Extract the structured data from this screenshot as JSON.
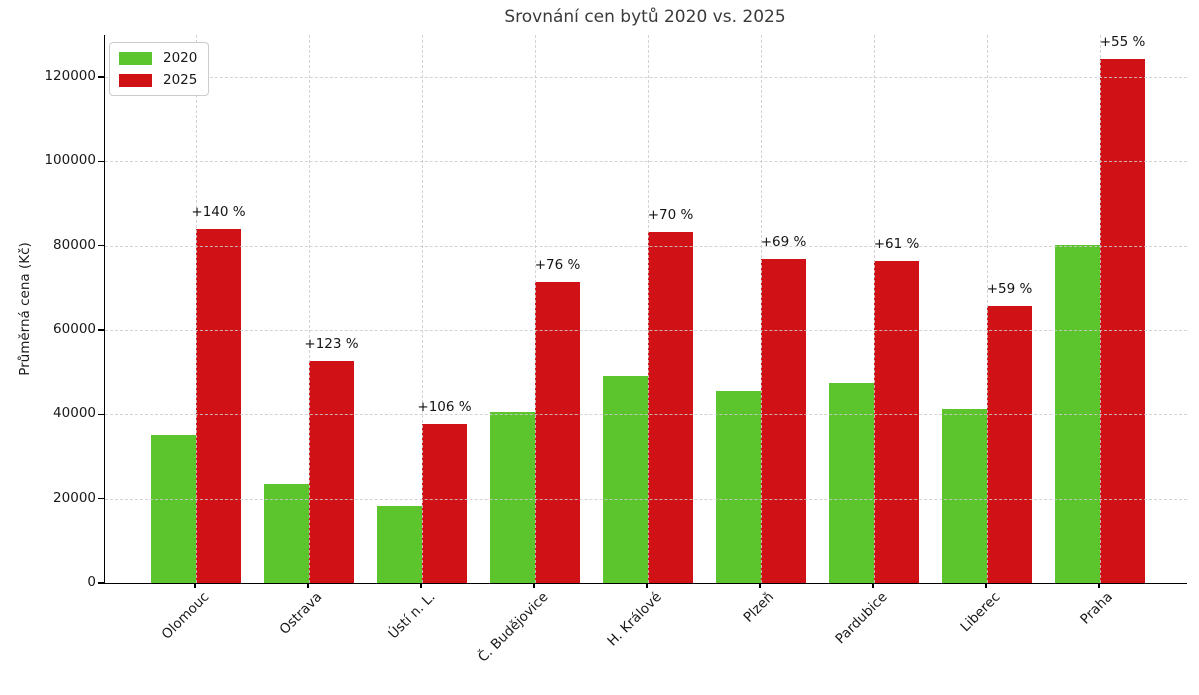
{
  "title": "Srovnání cen bytů 2020 vs. 2025",
  "ylabel": "Průměrná cena (Kč)",
  "legend": {
    "items": [
      "2020",
      "2025"
    ]
  },
  "colors": {
    "series_2020": "#5cc42d",
    "series_2025": "#d01217",
    "grid": "#cccccc",
    "axis": "#000000",
    "title_text": "#3a3a3a",
    "tick_text": "#191919"
  },
  "chart_data": {
    "type": "bar",
    "title": "Srovnání cen bytů 2020 vs. 2025",
    "xlabel": "",
    "ylabel": "Průměrná cena (Kč)",
    "categories": [
      "Olomouc",
      "Ostrava",
      "Ústí n. L.",
      "Č. Budějovice",
      "H. Králové",
      "Plzeň",
      "Pardubice",
      "Liberec",
      "Praha"
    ],
    "series": [
      {
        "name": "2020",
        "color": "#5cc42d",
        "values": [
          35000,
          23600,
          18300,
          40600,
          49000,
          45500,
          47500,
          41300,
          80200
        ]
      },
      {
        "name": "2025",
        "color": "#d01217",
        "values": [
          84000,
          52600,
          37700,
          71500,
          83300,
          76900,
          76500,
          65700,
          124300
        ]
      }
    ],
    "annotations": [
      "+140 %",
      "+123 %",
      "+106 %",
      "+76 %",
      "+70 %",
      "+69 %",
      "+61 %",
      "+59 %",
      "+55 %"
    ],
    "ylim": [
      0,
      130000
    ],
    "yticks": [
      0,
      20000,
      40000,
      60000,
      80000,
      100000,
      120000
    ],
    "grid": true,
    "grid_style": "dashed",
    "legend_position": "upper left",
    "bar_orientation": "vertical",
    "xtick_rotation": 45
  }
}
